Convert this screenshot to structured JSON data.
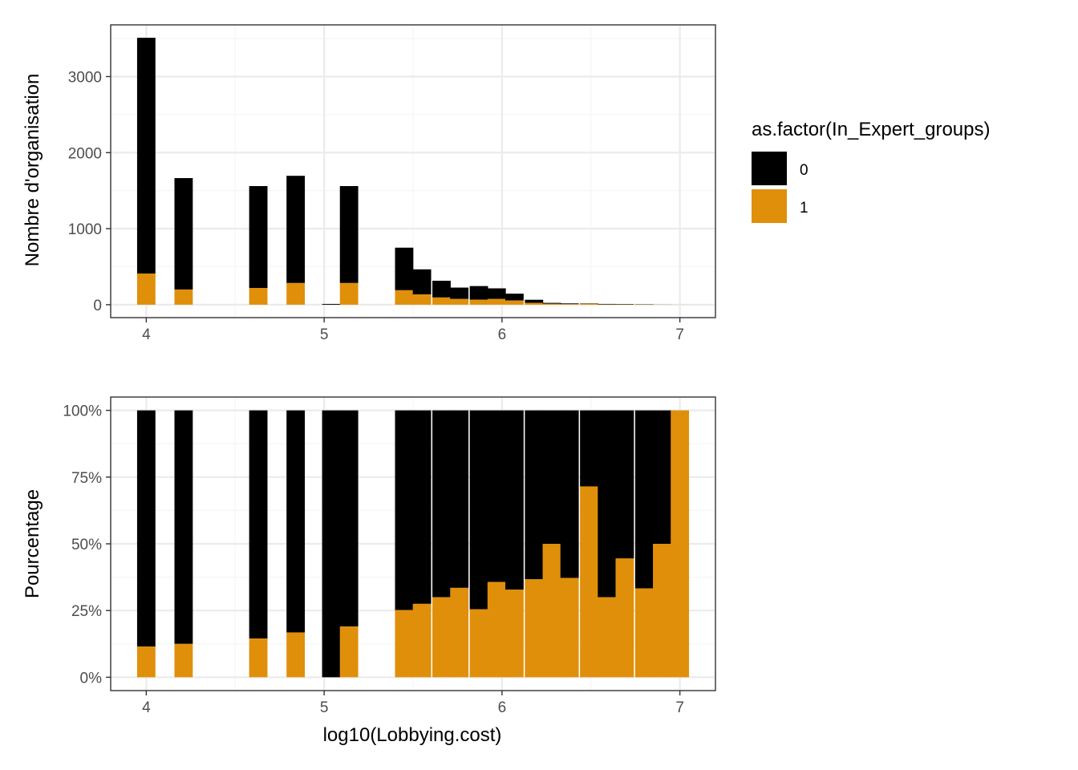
{
  "chart_data": [
    {
      "type": "bar",
      "stacking": "stacked",
      "ylabel": "Nombre d'organisation",
      "xlabel": "",
      "xlim": [
        3.8,
        7.2
      ],
      "ylim": [
        -170,
        3680
      ],
      "x_ticks": [
        "4",
        "5",
        "6",
        "7"
      ],
      "y_ticks": [
        "0",
        "1000",
        "2000",
        "3000"
      ],
      "grid": true,
      "bin_width": 0.103,
      "bins": [
        {
          "x": 4.0,
          "n0": 3100,
          "n1": 410
        },
        {
          "x": 4.21,
          "n0": 1465,
          "n1": 200
        },
        {
          "x": 4.63,
          "n0": 1340,
          "n1": 220
        },
        {
          "x": 4.84,
          "n0": 1410,
          "n1": 285
        },
        {
          "x": 5.04,
          "n0": 10,
          "n1": 0
        },
        {
          "x": 5.14,
          "n0": 1275,
          "n1": 285
        },
        {
          "x": 5.45,
          "n0": 560,
          "n1": 190
        },
        {
          "x": 5.55,
          "n0": 330,
          "n1": 135
        },
        {
          "x": 5.66,
          "n0": 220,
          "n1": 95
        },
        {
          "x": 5.76,
          "n0": 150,
          "n1": 75
        },
        {
          "x": 5.87,
          "n0": 180,
          "n1": 65
        },
        {
          "x": 5.97,
          "n0": 140,
          "n1": 75
        },
        {
          "x": 6.07,
          "n0": 90,
          "n1": 55
        },
        {
          "x": 6.18,
          "n0": 40,
          "n1": 25
        },
        {
          "x": 6.28,
          "n0": 12,
          "n1": 12
        },
        {
          "x": 6.38,
          "n0": 10,
          "n1": 7
        },
        {
          "x": 6.49,
          "n0": 5,
          "n1": 13
        },
        {
          "x": 6.59,
          "n0": 7,
          "n1": 3
        },
        {
          "x": 6.69,
          "n0": 5,
          "n1": 4
        },
        {
          "x": 6.8,
          "n0": 4,
          "n1": 2
        },
        {
          "x": 6.9,
          "n0": 1,
          "n1": 1
        },
        {
          "x": 7.0,
          "n0": 0,
          "n1": 1
        }
      ]
    },
    {
      "type": "bar",
      "stacking": "fill",
      "ylabel": "Pourcentage",
      "xlabel": "log10(Lobbying.cost)",
      "xlim": [
        3.8,
        7.2
      ],
      "ylim": [
        -0.05,
        1.05
      ],
      "x_ticks": [
        "4",
        "5",
        "6",
        "7"
      ],
      "y_ticks": [
        "0%",
        "25%",
        "50%",
        "75%",
        "100%"
      ],
      "grid": true,
      "bin_width": 0.103,
      "bins": [
        {
          "x": 4.0,
          "pct1": 0.115
        },
        {
          "x": 4.21,
          "pct1": 0.125
        },
        {
          "x": 4.63,
          "pct1": 0.145
        },
        {
          "x": 4.84,
          "pct1": 0.168
        },
        {
          "x": 5.04,
          "pct1": 0.0
        },
        {
          "x": 5.14,
          "pct1": 0.19
        },
        {
          "x": 5.45,
          "pct1": 0.252
        },
        {
          "x": 5.55,
          "pct1": 0.275
        },
        {
          "x": 5.66,
          "pct1": 0.3
        },
        {
          "x": 5.76,
          "pct1": 0.335
        },
        {
          "x": 5.87,
          "pct1": 0.255
        },
        {
          "x": 5.97,
          "pct1": 0.357
        },
        {
          "x": 6.07,
          "pct1": 0.328
        },
        {
          "x": 6.18,
          "pct1": 0.367
        },
        {
          "x": 6.28,
          "pct1": 0.5
        },
        {
          "x": 6.38,
          "pct1": 0.372
        },
        {
          "x": 6.49,
          "pct1": 0.715
        },
        {
          "x": 6.59,
          "pct1": 0.3
        },
        {
          "x": 6.69,
          "pct1": 0.445
        },
        {
          "x": 6.8,
          "pct1": 0.333
        },
        {
          "x": 6.9,
          "pct1": 0.5
        },
        {
          "x": 7.0,
          "pct1": 1.0
        }
      ]
    }
  ],
  "legend": {
    "title": "as.factor(In_Expert_groups)",
    "placement": "right",
    "items": [
      {
        "label": "0",
        "color": "#000000"
      },
      {
        "label": "1",
        "color": "#E08F0A"
      }
    ]
  },
  "colors": {
    "group0": "#000000",
    "group1": "#E08F0A",
    "grid_major": "#EBEBEB",
    "grid_minor": "#F4F4F4",
    "panel_border": "#333333"
  }
}
